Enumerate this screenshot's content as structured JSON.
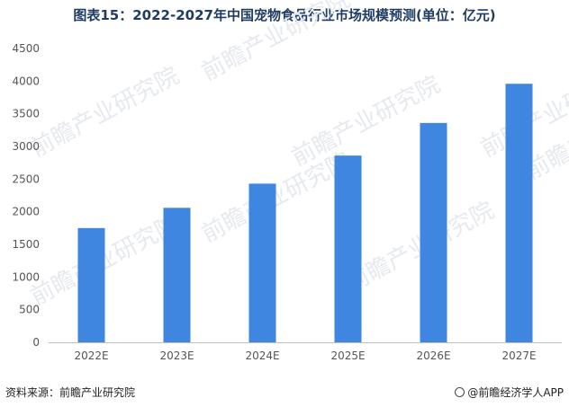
{
  "chart_data": {
    "type": "bar",
    "title": "图表15：2022-2027年中国宠物食品行业市场规模预测(单位：亿元)",
    "categories": [
      "2022E",
      "2023E",
      "2024E",
      "2025E",
      "2026E",
      "2027E"
    ],
    "values": [
      1750,
      2060,
      2430,
      2860,
      3360,
      3960
    ],
    "ylim": [
      0,
      4500
    ],
    "yticks": [
      0,
      500,
      1000,
      1500,
      2000,
      2500,
      3000,
      3500,
      4000,
      4500
    ],
    "grid": false,
    "bar_color": "#3e86e0"
  },
  "footer": {
    "source": "资料来源：前瞻产业研究院",
    "brand": "@前瞻经济学人APP"
  },
  "watermark": {
    "text": "前瞻产业研究院"
  }
}
